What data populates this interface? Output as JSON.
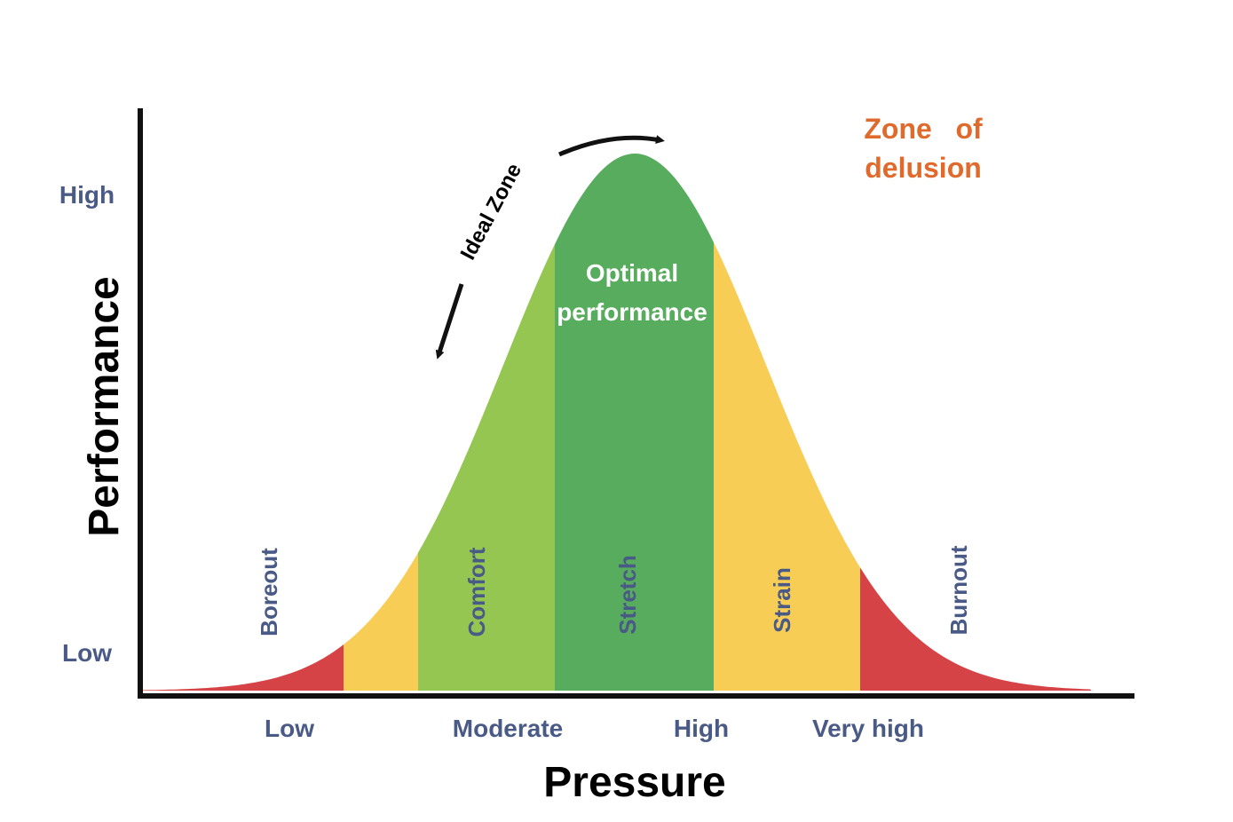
{
  "y_axis": {
    "title": "Performance",
    "ticks": [
      "High",
      "Low"
    ]
  },
  "x_axis": {
    "title": "Pressure",
    "ticks": [
      "Low",
      "Moderate",
      "High",
      "Very high"
    ]
  },
  "zones": [
    {
      "label": "Boreout",
      "color": "#d64346"
    },
    {
      "label": "",
      "color": "#f7cd56"
    },
    {
      "label": "Comfort",
      "color": "#94c651"
    },
    {
      "label": "Stretch",
      "color": "#58ac5d"
    },
    {
      "label": "Strain",
      "color": "#f7cd56"
    },
    {
      "label": "Burnout",
      "color": "#d64346"
    }
  ],
  "annotations": {
    "optimal_line1": "Optimal",
    "optimal_line2": "performance",
    "ideal_zone": "Ideal Zone",
    "delusion_line1": "Zone   of",
    "delusion_line2": "delusion"
  },
  "colors": {
    "axis": "#111111",
    "label_blue": "#4a5a86",
    "delusion_orange": "#e06a2c"
  }
}
